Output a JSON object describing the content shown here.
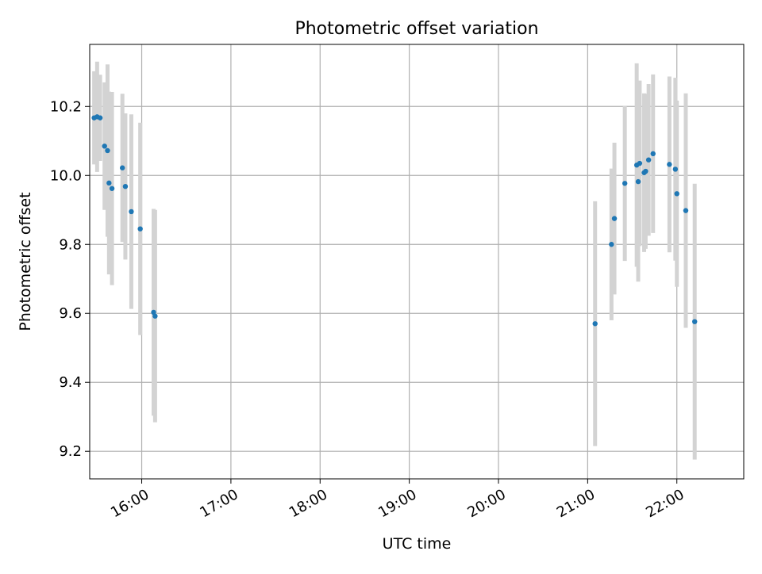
{
  "chart_data": {
    "type": "scatter",
    "title": "Photometric offset variation",
    "xlabel": "UTC time",
    "ylabel": "Photometric offset",
    "x_axis": {
      "kind": "time",
      "range": [
        "15:25",
        "22:45"
      ],
      "ticks": [
        "16:00",
        "17:00",
        "18:00",
        "19:00",
        "20:00",
        "21:00",
        "22:00"
      ]
    },
    "ylim": [
      9.12,
      10.38
    ],
    "yticks": [
      "9.2",
      "9.4",
      "9.6",
      "9.8",
      "10.0",
      "10.2"
    ],
    "grid": true,
    "colors": {
      "points": "#1f77b4",
      "errorbars": "#d3d3d3",
      "grid": "#b0b0b0"
    },
    "points": [
      {
        "t": "15:28",
        "y": 10.167,
        "yerr": 0.135
      },
      {
        "t": "15:30",
        "y": 10.17,
        "yerr": 0.16
      },
      {
        "t": "15:32",
        "y": 10.167,
        "yerr": 0.125
      },
      {
        "t": "15:35",
        "y": 10.085,
        "yerr": 0.185
      },
      {
        "t": "15:37",
        "y": 10.072,
        "yerr": 0.25
      },
      {
        "t": "15:38",
        "y": 9.978,
        "yerr": 0.265
      },
      {
        "t": "15:40",
        "y": 9.962,
        "yerr": 0.28
      },
      {
        "t": "15:47",
        "y": 10.022,
        "yerr": 0.215
      },
      {
        "t": "15:49",
        "y": 9.968,
        "yerr": 0.212
      },
      {
        "t": "15:53",
        "y": 9.895,
        "yerr": 0.282
      },
      {
        "t": "15:59",
        "y": 9.845,
        "yerr": 0.308
      },
      {
        "t": "16:08",
        "y": 9.603,
        "yerr": 0.3
      },
      {
        "t": "16:09",
        "y": 9.592,
        "yerr": 0.308
      },
      {
        "t": "21:05",
        "y": 9.57,
        "yerr": 0.355
      },
      {
        "t": "21:16",
        "y": 9.8,
        "yerr": 0.22
      },
      {
        "t": "21:18",
        "y": 9.875,
        "yerr": 0.22
      },
      {
        "t": "21:25",
        "y": 9.977,
        "yerr": 0.225
      },
      {
        "t": "21:33",
        "y": 10.03,
        "yerr": 0.295
      },
      {
        "t": "21:34",
        "y": 9.982,
        "yerr": 0.29
      },
      {
        "t": "21:35",
        "y": 10.035,
        "yerr": 0.24
      },
      {
        "t": "21:38",
        "y": 10.008,
        "yerr": 0.23
      },
      {
        "t": "21:39",
        "y": 10.012,
        "yerr": 0.225
      },
      {
        "t": "21:41",
        "y": 10.045,
        "yerr": 0.22
      },
      {
        "t": "21:44",
        "y": 10.063,
        "yerr": 0.23
      },
      {
        "t": "21:55",
        "y": 10.032,
        "yerr": 0.255
      },
      {
        "t": "21:59",
        "y": 10.018,
        "yerr": 0.265
      },
      {
        "t": "22:00",
        "y": 9.947,
        "yerr": 0.27
      },
      {
        "t": "22:06",
        "y": 9.898,
        "yerr": 0.34
      },
      {
        "t": "22:12",
        "y": 9.576,
        "yerr": 0.4
      }
    ]
  }
}
